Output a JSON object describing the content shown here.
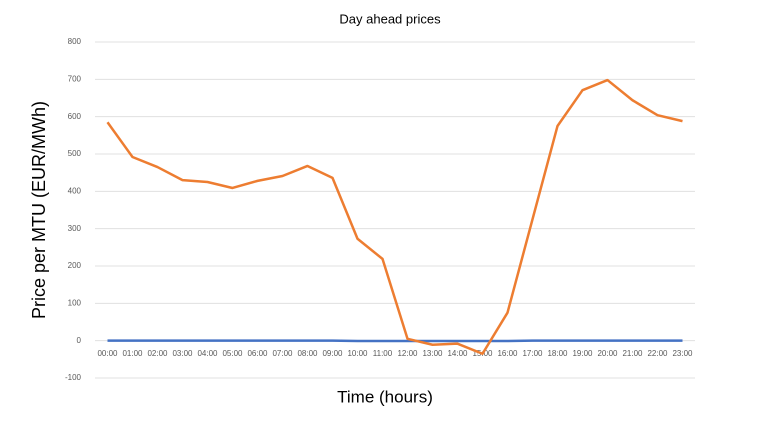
{
  "chart_data": {
    "type": "line",
    "title": "Day ahead prices",
    "x_label": "Time (hours)",
    "y_label": "Price per MTU (EUR/MWh)",
    "categories": [
      "00:00",
      "01:00",
      "02:00",
      "03:00",
      "04:00",
      "05:00",
      "06:00",
      "07:00",
      "08:00",
      "09:00",
      "10:00",
      "11:00",
      "12:00",
      "13:00",
      "14:00",
      "15:00",
      "16:00",
      "17:00",
      "18:00",
      "19:00",
      "20:00",
      "21:00",
      "22:00",
      "23:00"
    ],
    "series": [
      {
        "color": "#4472c4",
        "values": [
          0,
          0,
          0,
          0,
          0,
          0,
          0,
          0,
          0,
          0,
          -1,
          -1,
          -1,
          -1,
          -1,
          -1,
          -1,
          0,
          0,
          0,
          0,
          0,
          0,
          0
        ]
      },
      {
        "color": "#ed7d31",
        "values": [
          585,
          492,
          465,
          430,
          425,
          409,
          428,
          441,
          468,
          436,
          273,
          219,
          5,
          -11,
          -8,
          -35,
          75,
          325,
          575,
          671,
          698,
          644,
          604,
          588
        ]
      }
    ],
    "ylim": [
      -100,
      800
    ],
    "yticks": [
      -100,
      0,
      100,
      200,
      300,
      400,
      500,
      600,
      700,
      800
    ],
    "grid": true
  }
}
